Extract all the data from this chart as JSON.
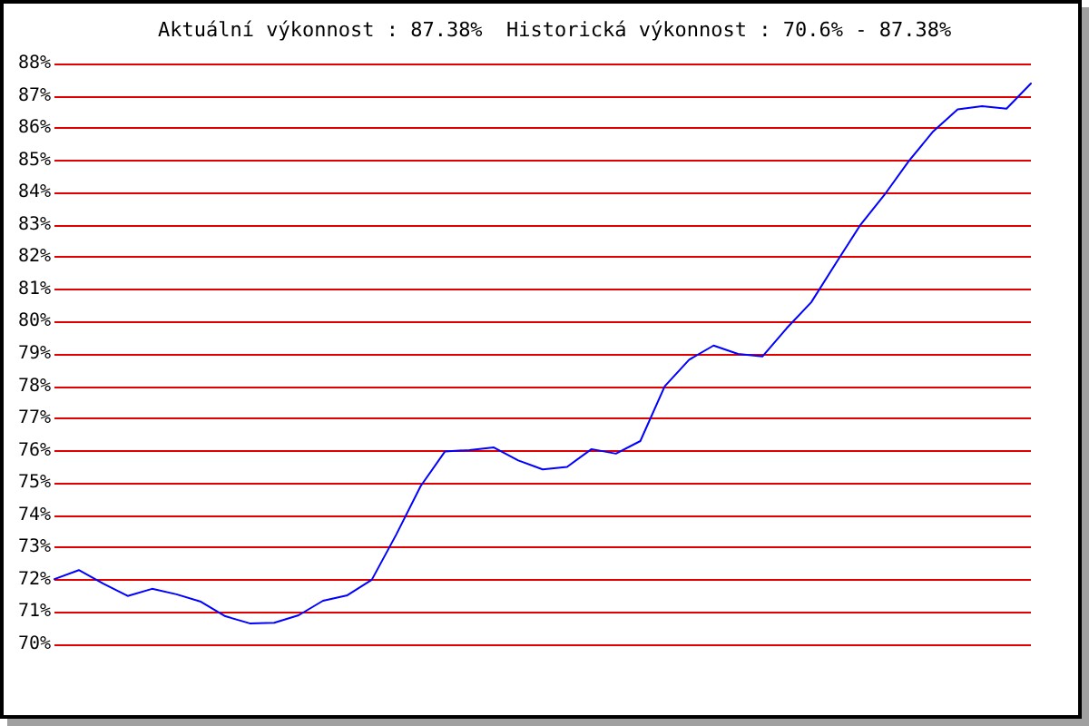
{
  "chart_data": {
    "type": "line",
    "title": "Aktuální výkonnost : 87.38%  Historická výkonnost : 70.6% - 87.38%",
    "categories": [
      null,
      null,
      null,
      null,
      null,
      null,
      null,
      null,
      null,
      null,
      null,
      null,
      null,
      null,
      null,
      null,
      null,
      null,
      null,
      null,
      null,
      null,
      null,
      null,
      null,
      null,
      null,
      null,
      null,
      null,
      null,
      null,
      null,
      null,
      null,
      null,
      null,
      null,
      null,
      null,
      null
    ],
    "series": [
      {
        "color": "#0000ff",
        "values": [
          72.02,
          72.3,
          71.88,
          71.5,
          71.72,
          71.55,
          71.32,
          70.87,
          70.65,
          70.67,
          70.9,
          71.35,
          71.52,
          72.0,
          73.4,
          74.9,
          75.98,
          76.02,
          76.1,
          75.7,
          75.42,
          75.5,
          76.05,
          75.91,
          76.3,
          78.0,
          78.82,
          79.26,
          79.0,
          78.92,
          79.8,
          80.6,
          81.8,
          82.98,
          83.93,
          84.98,
          85.9,
          86.58,
          86.68,
          86.6,
          87.38
        ]
      }
    ],
    "ylim": [
      70,
      88
    ],
    "yticks": [
      {
        "value": 70,
        "label": "70%"
      },
      {
        "value": 71,
        "label": "71%"
      },
      {
        "value": 72,
        "label": "72%"
      },
      {
        "value": 73,
        "label": "73%"
      },
      {
        "value": 74,
        "label": "74%"
      },
      {
        "value": 75,
        "label": "75%"
      },
      {
        "value": 76,
        "label": "76%"
      },
      {
        "value": 77,
        "label": "77%"
      },
      {
        "value": 78,
        "label": "78%"
      },
      {
        "value": 79,
        "label": "79%"
      },
      {
        "value": 80,
        "label": "80%"
      },
      {
        "value": 81,
        "label": "81%"
      },
      {
        "value": 82,
        "label": "82%"
      },
      {
        "value": 83,
        "label": "83%"
      },
      {
        "value": 84,
        "label": "84%"
      },
      {
        "value": 85,
        "label": "85%"
      },
      {
        "value": 86,
        "label": "86%"
      },
      {
        "value": 87,
        "label": "87%"
      },
      {
        "value": 88,
        "label": "88%"
      }
    ],
    "grid": "y",
    "marker": "none",
    "line_style": "solid"
  }
}
